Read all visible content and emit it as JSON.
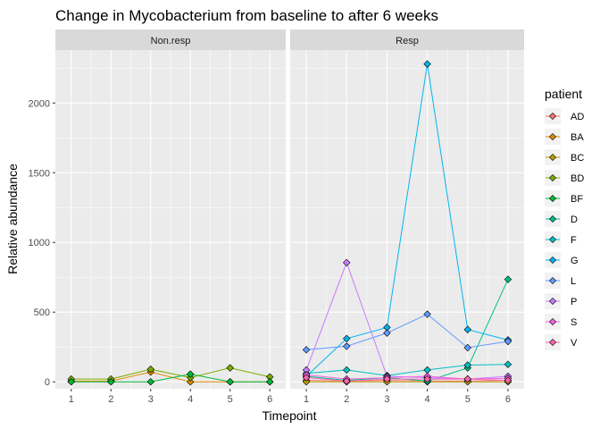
{
  "chart_data": {
    "type": "line",
    "title": "Change in Mycobacterium from baseline to after 6 weeks",
    "xlabel": "Timepoint",
    "ylabel": "Relative abundance",
    "x": [
      1,
      2,
      3,
      4,
      5,
      6
    ],
    "xlim": [
      0.6,
      6.4
    ],
    "ylim": [
      -50,
      2380
    ],
    "yticks": [
      0,
      500,
      1000,
      1500,
      2000
    ],
    "grid": true,
    "legend": {
      "title": "patient",
      "position": "right",
      "entries": [
        "AD",
        "BA",
        "BC",
        "BD",
        "BF",
        "D",
        "F",
        "G",
        "L",
        "P",
        "S",
        "V"
      ]
    },
    "colors": {
      "AD": "#F8766D",
      "BA": "#DE8C00",
      "BC": "#B79F00",
      "BD": "#7CAE00",
      "BF": "#00BA38",
      "D": "#00C08B",
      "F": "#00BFC4",
      "G": "#00B4F0",
      "L": "#619CFF",
      "P": "#C77CFF",
      "S": "#F564E3",
      "V": "#FF64B0"
    },
    "panels": [
      {
        "label": "Non.resp",
        "series": [
          {
            "name": "BA",
            "values": [
              5,
              5,
              70,
              0,
              0,
              0
            ]
          },
          {
            "name": "BD",
            "values": [
              20,
              20,
              90,
              30,
              100,
              35
            ]
          },
          {
            "name": "BF",
            "values": [
              0,
              0,
              0,
              55,
              0,
              0
            ]
          }
        ]
      },
      {
        "label": "Resp",
        "series": [
          {
            "name": "AD",
            "values": [
              10,
              5,
              10,
              5,
              5,
              10
            ]
          },
          {
            "name": "BC",
            "values": [
              0,
              0,
              0,
              0,
              0,
              0
            ]
          },
          {
            "name": "D",
            "values": [
              40,
              10,
              30,
              5,
              100,
              735
            ]
          },
          {
            "name": "F",
            "values": [
              60,
              85,
              45,
              85,
              120,
              125
            ]
          },
          {
            "name": "G",
            "values": [
              40,
              310,
              390,
              2280,
              375,
              300
            ]
          },
          {
            "name": "L",
            "values": [
              230,
              255,
              350,
              485,
              245,
              290
            ]
          },
          {
            "name": "P",
            "values": [
              85,
              855,
              40,
              30,
              20,
              40
            ]
          },
          {
            "name": "S",
            "values": [
              50,
              20,
              30,
              40,
              20,
              25
            ]
          },
          {
            "name": "V",
            "values": [
              30,
              5,
              20,
              20,
              20,
              10
            ]
          }
        ]
      }
    ]
  }
}
